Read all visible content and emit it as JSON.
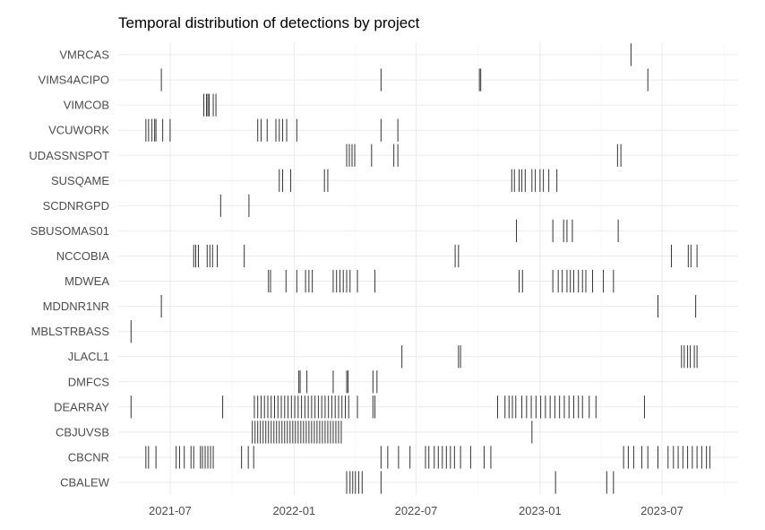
{
  "chart_data": {
    "type": "event-strip",
    "title": "Temporal distribution of detections by project",
    "xlabel": "",
    "ylabel": "",
    "x_ticks": [
      "2021-07",
      "2022-01",
      "2022-07",
      "2023-01",
      "2023-07"
    ],
    "x_range": [
      "2021-04-15",
      "2023-10-22"
    ],
    "projects": [
      "VMRCAS",
      "VIMS4ACIPO",
      "VIMCOB",
      "VCUWORK",
      "UDASSNSPOT",
      "SUSQAME",
      "SCDNRGPD",
      "SBUSOMAS01",
      "NCCOBIA",
      "MDWEA",
      "MDDNR1NR",
      "MBLSTRBASS",
      "JLACL1",
      "DMFCS",
      "DEARRAY",
      "CBJUVSB",
      "CBCNR",
      "CBALEW"
    ],
    "detections": {
      "VMRCAS": [
        "2023-05-16"
      ],
      "VIMS4ACIPO": [
        "2021-06-18",
        "2022-05-10",
        "2022-10-03",
        "2022-10-05",
        "2023-06-10"
      ],
      "VIMCOB": [
        "2021-08-20",
        "2021-08-24",
        "2021-08-26",
        "2021-08-28",
        "2021-09-03",
        "2021-09-07"
      ],
      "VCUWORK": [
        "2021-05-26",
        "2021-05-30",
        "2021-06-04",
        "2021-06-08",
        "2021-06-10",
        "2021-06-20",
        "2021-07-01",
        "2021-11-08",
        "2021-11-13",
        "2021-11-22",
        "2021-12-05",
        "2021-12-10",
        "2021-12-15",
        "2021-12-21",
        "2022-01-05",
        "2022-05-10",
        "2022-06-04"
      ],
      "UDASSNSPOT": [
        "2022-03-20",
        "2022-03-24",
        "2022-03-28",
        "2022-04-01",
        "2022-04-26",
        "2022-05-29",
        "2022-06-04",
        "2023-04-26",
        "2023-05-01"
      ],
      "SUSQAME": [
        "2021-12-10",
        "2021-12-15",
        "2021-12-27",
        "2022-02-15",
        "2022-02-20",
        "2022-11-20",
        "2022-11-24",
        "2022-12-01",
        "2022-12-05",
        "2022-12-10",
        "2022-12-20",
        "2022-12-25",
        "2023-01-01",
        "2023-01-06",
        "2023-01-14",
        "2023-01-26"
      ],
      "SCDNRGPD": [
        "2021-09-14",
        "2021-10-26"
      ],
      "SBUSOMAS01": [
        "2022-11-27",
        "2023-01-20",
        "2023-02-05",
        "2023-02-10",
        "2023-02-18",
        "2023-04-27"
      ],
      "NCCOBIA": [
        "2021-08-05",
        "2021-08-08",
        "2021-08-12",
        "2021-08-25",
        "2021-08-29",
        "2021-09-02",
        "2021-09-09",
        "2021-10-19",
        "2022-08-28",
        "2022-09-02",
        "2023-07-15",
        "2023-08-09",
        "2023-08-13",
        "2023-08-22"
      ],
      "MDWEA": [
        "2021-11-24",
        "2021-11-27",
        "2021-12-20",
        "2022-01-05",
        "2022-01-18",
        "2022-01-23",
        "2022-01-28",
        "2022-02-28",
        "2022-03-05",
        "2022-03-10",
        "2022-03-15",
        "2022-03-20",
        "2022-03-25",
        "2022-04-05",
        "2022-05-01",
        "2022-12-01",
        "2022-12-06",
        "2023-01-20",
        "2023-01-28",
        "2023-02-03",
        "2023-02-10",
        "2023-02-15",
        "2023-02-20",
        "2023-02-27",
        "2023-03-05",
        "2023-03-10",
        "2023-03-20",
        "2023-04-05",
        "2023-04-20"
      ],
      "MDDNR1NR": [
        "2021-06-18",
        "2023-06-25",
        "2023-08-20"
      ],
      "MBLSTRBASS": [
        "2021-05-04"
      ],
      "JLACL1": [
        "2022-06-10",
        "2022-09-02",
        "2022-09-05",
        "2023-07-30",
        "2023-08-03",
        "2023-08-08",
        "2023-08-12",
        "2023-08-18",
        "2023-08-22"
      ],
      "DMFCS": [
        "2022-01-08",
        "2022-01-10",
        "2022-01-20",
        "2022-02-28",
        "2022-03-20",
        "2022-03-22",
        "2022-04-28",
        "2022-05-04"
      ],
      "DEARRAY": [
        "2021-05-04",
        "2021-09-17",
        "2021-11-03",
        "2021-11-08",
        "2021-11-13",
        "2021-11-18",
        "2021-11-23",
        "2021-11-28",
        "2021-12-03",
        "2021-12-08",
        "2021-12-13",
        "2021-12-18",
        "2021-12-23",
        "2021-12-28",
        "2022-01-02",
        "2022-01-07",
        "2022-01-12",
        "2022-01-17",
        "2022-01-22",
        "2022-01-27",
        "2022-02-01",
        "2022-02-06",
        "2022-02-11",
        "2022-02-16",
        "2022-02-21",
        "2022-02-26",
        "2022-03-03",
        "2022-03-08",
        "2022-03-13",
        "2022-03-18",
        "2022-03-23",
        "2022-04-05",
        "2022-04-28",
        "2022-05-01",
        "2022-10-30",
        "2022-11-10",
        "2022-11-16",
        "2022-11-21",
        "2022-11-26",
        "2022-12-05",
        "2022-12-12",
        "2022-12-19",
        "2022-12-26",
        "2023-01-02",
        "2023-01-09",
        "2023-01-16",
        "2023-01-23",
        "2023-01-30",
        "2023-02-06",
        "2023-02-13",
        "2023-02-20",
        "2023-02-27",
        "2023-03-05",
        "2023-03-15",
        "2023-03-25",
        "2023-06-05"
      ],
      "CBJUVSB": [
        "2021-10-31",
        "2021-11-04",
        "2021-11-08",
        "2021-11-12",
        "2021-11-16",
        "2021-11-20",
        "2021-11-24",
        "2021-11-28",
        "2021-12-02",
        "2021-12-06",
        "2021-12-10",
        "2021-12-14",
        "2021-12-18",
        "2021-12-22",
        "2021-12-26",
        "2021-12-30",
        "2022-01-03",
        "2022-01-07",
        "2022-01-11",
        "2022-01-15",
        "2022-01-19",
        "2022-01-23",
        "2022-01-27",
        "2022-01-31",
        "2022-02-04",
        "2022-02-08",
        "2022-02-12",
        "2022-02-16",
        "2022-02-20",
        "2022-02-24",
        "2022-02-28",
        "2022-03-04",
        "2022-03-08",
        "2022-03-12",
        "2022-12-20"
      ],
      "CBCNR": [
        "2021-05-26",
        "2021-05-30",
        "2021-06-10",
        "2021-07-10",
        "2021-07-15",
        "2021-07-22",
        "2021-08-01",
        "2021-08-05",
        "2021-08-15",
        "2021-08-18",
        "2021-08-22",
        "2021-08-26",
        "2021-08-30",
        "2021-09-03",
        "2021-10-15",
        "2021-10-25",
        "2021-11-02",
        "2022-05-10",
        "2022-05-20",
        "2022-06-05",
        "2022-06-22",
        "2022-07-15",
        "2022-07-20",
        "2022-07-28",
        "2022-08-03",
        "2022-08-09",
        "2022-08-15",
        "2022-08-21",
        "2022-08-27",
        "2022-09-05",
        "2022-09-20",
        "2022-10-10",
        "2022-10-20",
        "2023-05-05",
        "2023-05-12",
        "2023-05-20",
        "2023-06-01",
        "2023-06-10",
        "2023-06-25",
        "2023-07-10",
        "2023-07-18",
        "2023-07-25",
        "2023-08-01",
        "2023-08-08",
        "2023-08-15",
        "2023-08-22",
        "2023-08-29",
        "2023-09-05",
        "2023-09-10"
      ],
      "CBALEW": [
        "2022-03-20",
        "2022-03-25",
        "2022-03-29",
        "2022-04-02",
        "2022-04-07",
        "2022-04-12",
        "2022-05-10",
        "2023-01-24",
        "2023-04-10",
        "2023-04-20"
      ]
    }
  }
}
